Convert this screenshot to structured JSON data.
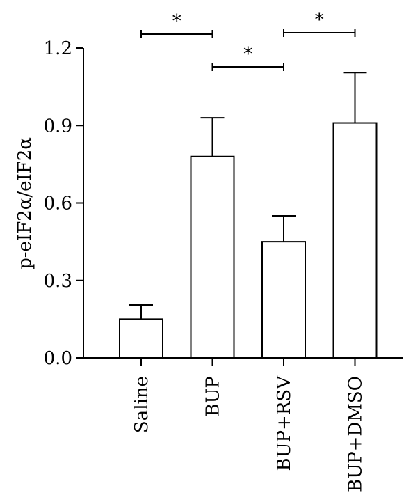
{
  "chart_data": {
    "type": "bar",
    "title": "",
    "xlabel": "",
    "ylabel": "p-eIF2α/eIF2α",
    "ylim": [
      0,
      1.2
    ],
    "yticks": [
      0.0,
      0.3,
      0.6,
      0.9,
      1.2
    ],
    "ytick_labels": [
      "0.0",
      "0.3",
      "0.6",
      "0.9",
      "1.2"
    ],
    "categories": [
      "Saline",
      "BUP",
      "BUP+RSV",
      "BUP+DMSO"
    ],
    "values": [
      0.15,
      0.78,
      0.45,
      0.91
    ],
    "errors": [
      0.055,
      0.15,
      0.1,
      0.195
    ],
    "significance": [
      {
        "from": "Saline",
        "to": "BUP",
        "label": "*"
      },
      {
        "from": "BUP",
        "to": "BUP+RSV",
        "label": "*"
      },
      {
        "from": "BUP+RSV",
        "to": "BUP+DMSO",
        "label": "*"
      }
    ],
    "grid": false,
    "legend": "none"
  }
}
